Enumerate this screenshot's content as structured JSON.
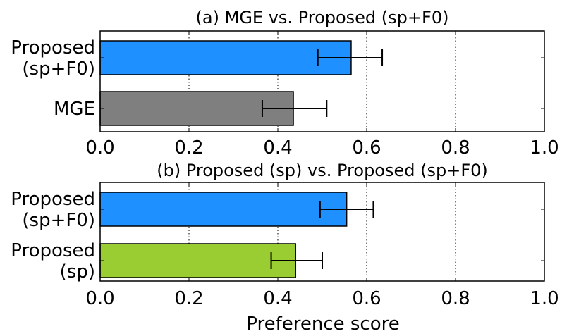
{
  "chart_data": [
    {
      "type": "bar",
      "orientation": "horizontal",
      "title": "(a) MGE vs. Proposed (sp+F0)",
      "categories": [
        {
          "lines": [
            "Proposed",
            "(sp+F0)"
          ],
          "value": 0.565,
          "error": [
            0.49,
            0.635
          ],
          "color": "#1e90ff"
        },
        {
          "lines": [
            "MGE"
          ],
          "value": 0.435,
          "error": [
            0.365,
            0.51
          ],
          "color": "#7f7f7f"
        }
      ],
      "xlim": [
        0,
        1
      ],
      "xticks": [
        "0.0",
        "0.2",
        "0.4",
        "0.6",
        "0.8",
        "1.0"
      ],
      "grid": "vertical dotted"
    },
    {
      "type": "bar",
      "orientation": "horizontal",
      "title": "(b) Proposed (sp) vs. Proposed (sp+F0)",
      "categories": [
        {
          "lines": [
            "Proposed",
            "(sp+F0)"
          ],
          "value": 0.555,
          "error": [
            0.495,
            0.615
          ],
          "color": "#1e90ff"
        },
        {
          "lines": [
            "Proposed",
            "(sp)"
          ],
          "value": 0.44,
          "error": [
            0.385,
            0.5
          ],
          "color": "#9acd32"
        }
      ],
      "xlim": [
        0,
        1
      ],
      "xticks": [
        "0.0",
        "0.2",
        "0.4",
        "0.6",
        "0.8",
        "1.0"
      ],
      "grid": "vertical dotted"
    }
  ],
  "xlabel": "Preference score"
}
